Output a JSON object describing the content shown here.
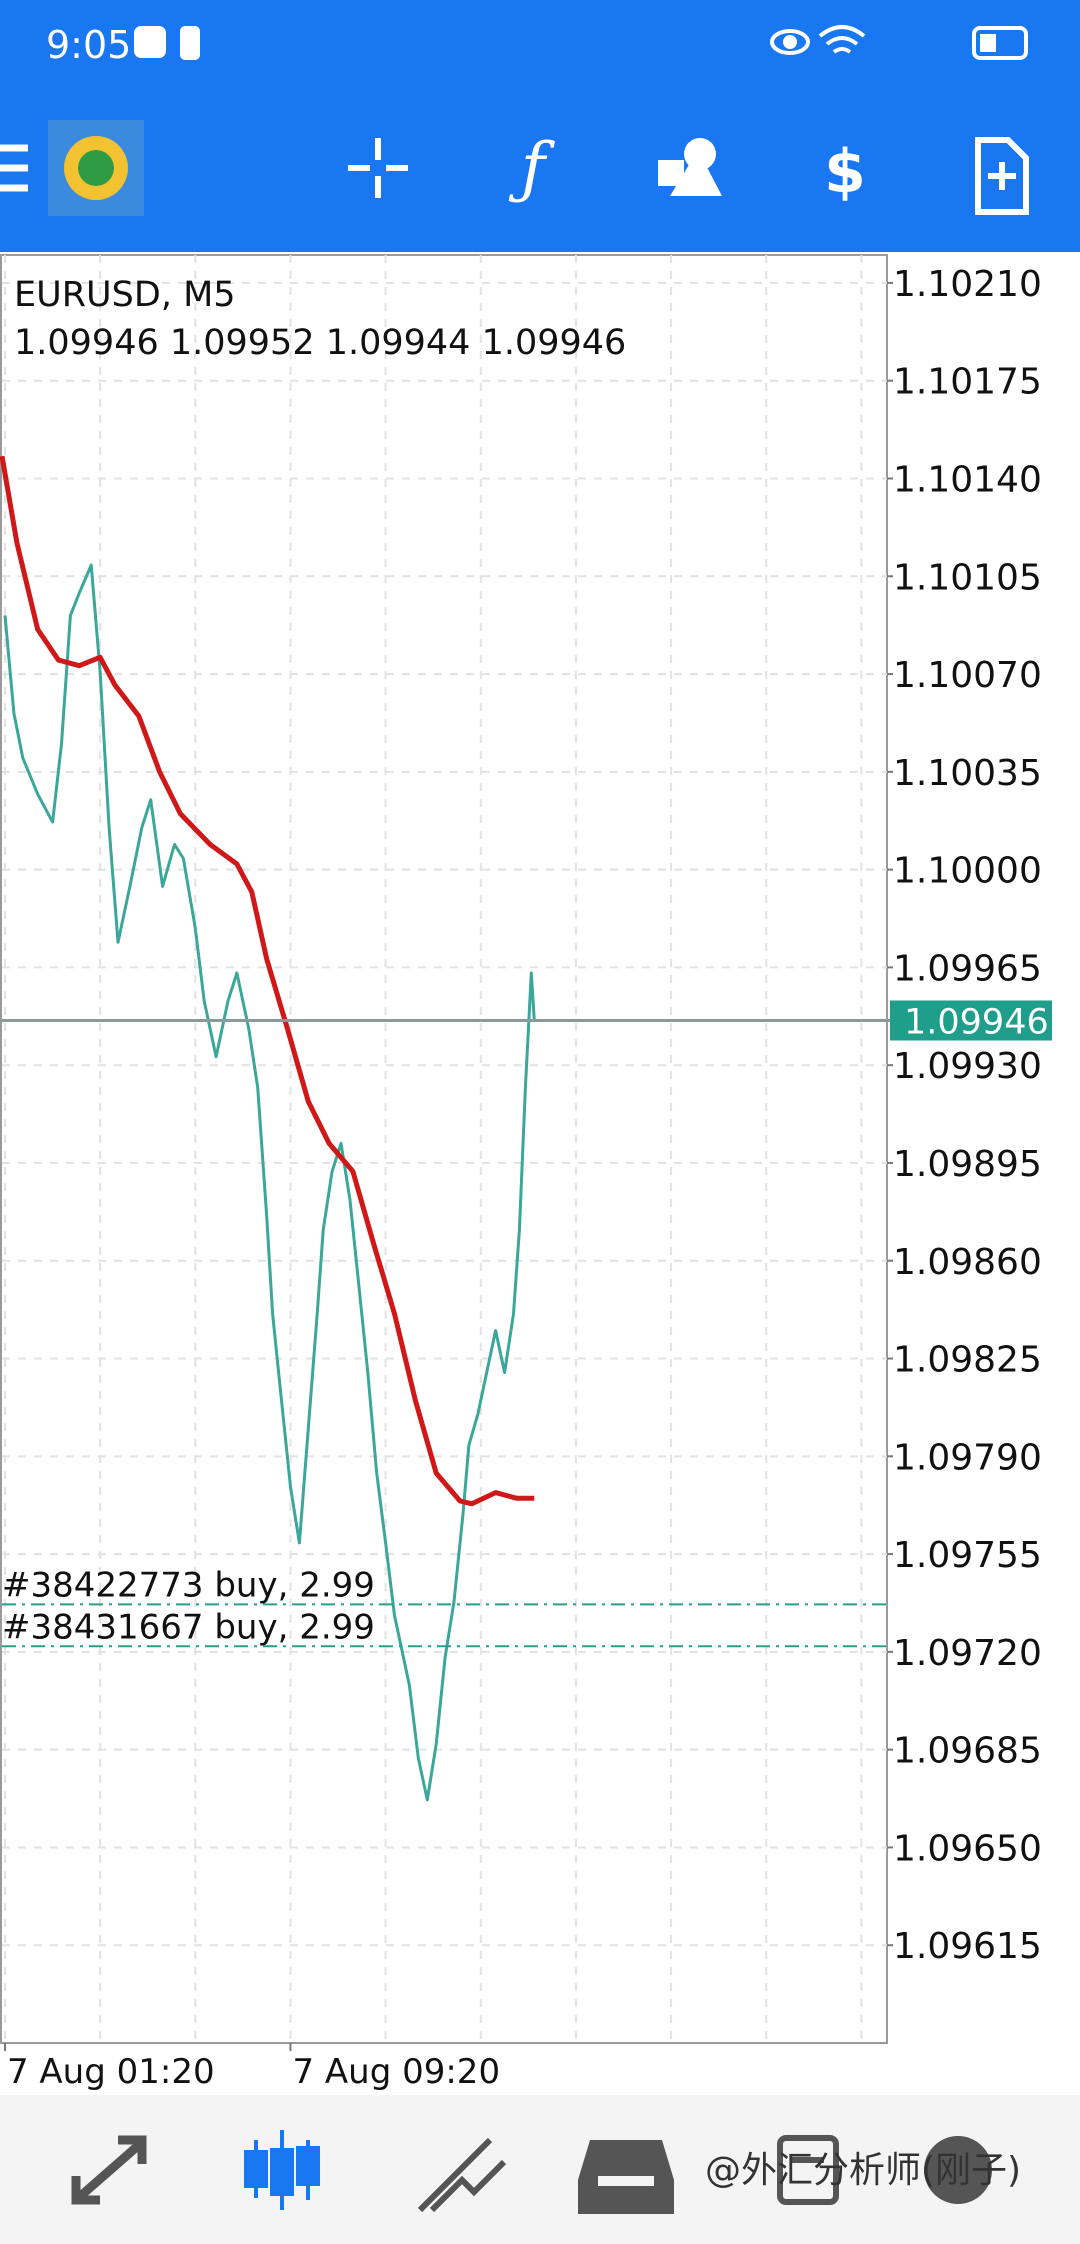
{
  "status_bar": {
    "time": "9:05"
  },
  "chart_data": {
    "type": "line",
    "title": "EURUSD, M5",
    "subtitle": "1.09946 1.09952 1.09944 1.09946",
    "grid": true,
    "ylim": [
      1.0958,
      1.1022
    ],
    "yticks": [
      {
        "value": 1.1021,
        "label": "1.10210"
      },
      1.10175,
      {
        "value": 1.1014,
        "label": "1.10140"
      },
      1.10105,
      {
        "value": 1.1007,
        "label": "1.10070"
      },
      1.10035,
      {
        "value": 1.1,
        "label": "1.10000"
      },
      1.09965,
      {
        "value": 1.0993,
        "label": "1.09930"
      },
      1.09895,
      {
        "value": 1.0986,
        "label": "1.09860"
      },
      1.09825,
      {
        "value": 1.0979,
        "label": "1.09790"
      },
      1.09755,
      {
        "value": 1.0972,
        "label": "1.09720"
      },
      1.09685,
      {
        "value": 1.0965,
        "label": "1.09650"
      },
      1.09615
    ],
    "xlim": [
      75,
      1563
    ],
    "xticks": [
      {
        "value": 80,
        "label": "7 Aug 01:20"
      },
      {
        "value": 560,
        "label": "7 Aug 09:20"
      }
    ],
    "current_price": 1.09946,
    "current_price_color": "#1f9e8c",
    "orders": [
      {
        "label": "#38422773 buy, 2.99",
        "price": 1.09737
      },
      {
        "label": "#38431667 buy, 2.99",
        "price": 1.09722
      }
    ],
    "order_color": "#2a9d8f",
    "series": [
      {
        "color": "#3aa79a",
        "x": [
          80,
          95,
          110,
          135,
          160,
          175,
          190,
          205,
          225,
          240,
          255,
          270,
          290,
          310,
          325,
          345,
          365,
          380,
          400,
          415,
          435,
          455,
          470,
          490,
          505,
          520,
          530,
          545,
          560,
          575,
          590,
          605,
          615,
          630,
          645,
          660,
          675,
          690,
          705,
          720,
          735,
          745,
          760,
          775,
          790,
          805,
          820,
          835,
          850,
          860,
          875,
          890,
          905,
          920,
          935,
          945,
          955,
          965,
          970
        ],
        "values": [
          1.10091,
          1.10056,
          1.1004,
          1.10027,
          1.10017,
          1.10045,
          1.10091,
          1.10099,
          1.10109,
          1.10071,
          1.10015,
          1.09974,
          1.09994,
          1.10015,
          1.10025,
          1.09994,
          1.10009,
          1.10004,
          1.09979,
          1.09953,
          1.09933,
          1.09953,
          1.09963,
          1.09943,
          1.09922,
          1.09876,
          1.09841,
          1.0981,
          1.09779,
          1.09759,
          1.098,
          1.09841,
          1.09871,
          1.09892,
          1.09902,
          1.09882,
          1.09851,
          1.0982,
          1.09784,
          1.09759,
          1.09733,
          1.09723,
          1.09708,
          1.09682,
          1.09667,
          1.09687,
          1.09718,
          1.09738,
          1.09769,
          1.09794,
          1.09805,
          1.0982,
          1.09835,
          1.0982,
          1.09841,
          1.09871,
          1.09922,
          1.09963,
          1.09946
        ]
      },
      {
        "color": "#d01818",
        "x": [
          75,
          100,
          135,
          170,
          205,
          240,
          265,
          305,
          340,
          375,
          425,
          470,
          495,
          520,
          555,
          590,
          625,
          665,
          700,
          735,
          770,
          805,
          845,
          865,
          905,
          940,
          970
        ],
        "values": [
          1.10148,
          1.10117,
          1.10086,
          1.10075,
          1.10073,
          1.10076,
          1.10066,
          1.10055,
          1.10035,
          1.1002,
          1.10009,
          1.10002,
          1.09992,
          1.09968,
          1.09943,
          1.09917,
          1.09902,
          1.09892,
          1.09866,
          1.09841,
          1.0981,
          1.09784,
          1.09774,
          1.09773,
          1.09777,
          1.09775,
          1.09775
        ]
      }
    ]
  },
  "watermark": "@外汇分析师(刚子)"
}
